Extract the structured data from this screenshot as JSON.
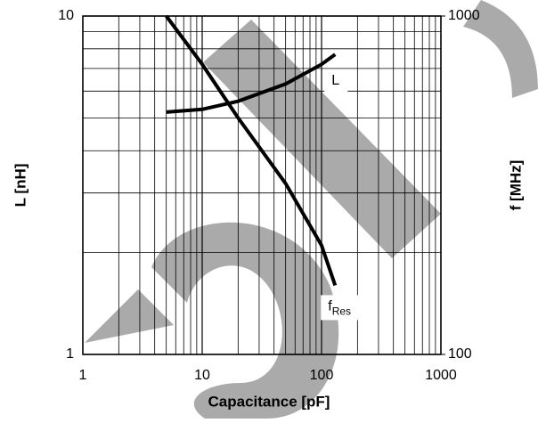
{
  "chart_data": {
    "type": "line",
    "x_label": "Capacitance [pF]",
    "y_label": "L [nH]",
    "y2_label": "f [MHz]",
    "log_x": true,
    "log_y": true,
    "log_y2": true,
    "grid": true,
    "xlim": [
      1,
      1000
    ],
    "xticks": [
      1,
      10,
      100,
      1000
    ],
    "ylim": [
      1,
      10
    ],
    "yticks": [
      1,
      10
    ],
    "y2lim": [
      100,
      1000
    ],
    "y2ticks": [
      100,
      1000
    ],
    "series": [
      {
        "name": "L",
        "color": "#000000",
        "axis": "y",
        "x": [
          5,
          10,
          20,
          50,
          100,
          130
        ],
        "values": [
          5.2,
          5.3,
          5.6,
          6.3,
          7.2,
          7.7
        ]
      },
      {
        "name": "f",
        "name_subscript": "Res",
        "color": "#000000",
        "axis": "y2",
        "x": [
          5,
          10,
          20,
          50,
          100,
          130
        ],
        "values": [
          1000,
          720,
          500,
          320,
          210,
          160
        ]
      }
    ]
  }
}
